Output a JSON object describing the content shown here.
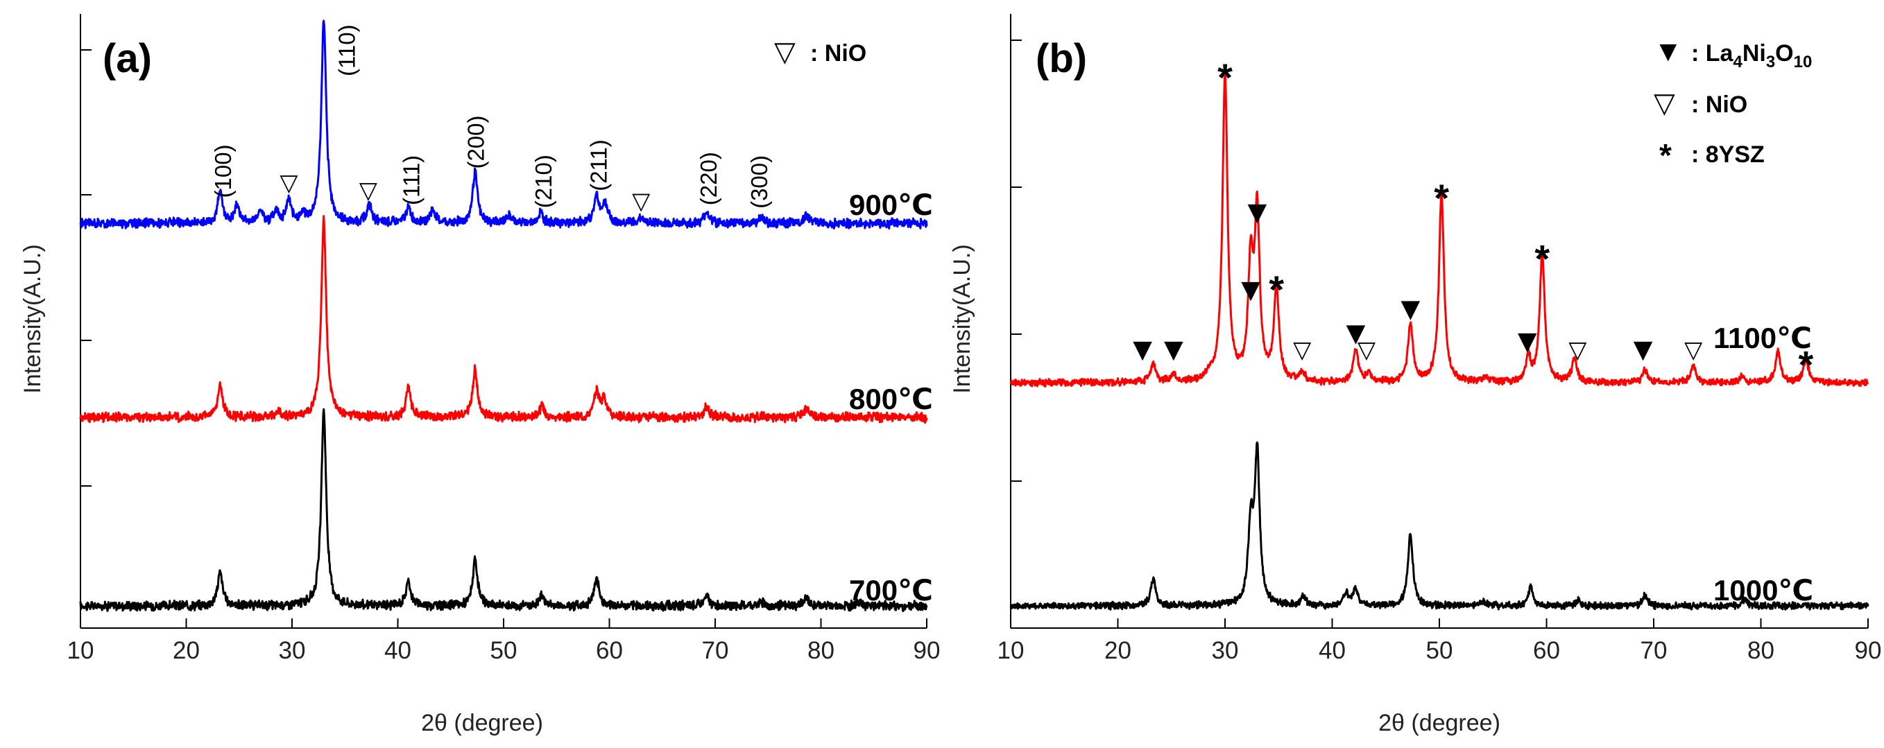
{
  "chart_data": [
    {
      "id": "a",
      "type": "line",
      "panel_label": "(a)",
      "xlabel": "2θ (degree)",
      "ylabel": "Intensity(A.U.)",
      "xlim": [
        10,
        90
      ],
      "xticks": [
        10,
        20,
        30,
        40,
        50,
        60,
        70,
        80,
        90
      ],
      "legend": [
        {
          "marker": "open-triangle",
          "marker_glyph": "▽",
          "label": ": NiO"
        }
      ],
      "series": [
        {
          "name": "700℃",
          "color": "#000000",
          "offset": 0,
          "baseline": 1.0,
          "peaks": [
            [
              23.2,
              2.5
            ],
            [
              33.0,
              14.5
            ],
            [
              41.0,
              1.8
            ],
            [
              47.3,
              3.3
            ],
            [
              53.6,
              0.8
            ],
            [
              58.8,
              2.0
            ],
            [
              69.2,
              0.7
            ],
            [
              74.3,
              0.3
            ],
            [
              78.6,
              0.6
            ],
            [
              83.5,
              0.3
            ]
          ]
        },
        {
          "name": "800℃",
          "color": "#ff0000",
          "offset": 1,
          "baseline": 1.0,
          "peaks": [
            [
              23.2,
              2.4
            ],
            [
              28.7,
              0.4
            ],
            [
              33.0,
              14.5
            ],
            [
              41.0,
              2.2
            ],
            [
              47.3,
              3.5
            ],
            [
              53.6,
              0.8
            ],
            [
              58.8,
              1.9
            ],
            [
              59.5,
              1.4
            ],
            [
              69.2,
              0.8
            ],
            [
              78.6,
              0.7
            ]
          ]
        },
        {
          "name": "900℃",
          "color": "#0000ff",
          "offset": 2,
          "baseline": 1.0,
          "peaks": [
            [
              23.2,
              2.3
            ],
            [
              24.8,
              1.3
            ],
            [
              27.0,
              1.0
            ],
            [
              28.5,
              0.9
            ],
            [
              29.7,
              1.6
            ],
            [
              31.0,
              0.6
            ],
            [
              33.0,
              15.0
            ],
            [
              37.3,
              1.3
            ],
            [
              41.0,
              1.2
            ],
            [
              43.3,
              1.0
            ],
            [
              47.3,
              3.7
            ],
            [
              50.5,
              0.6
            ],
            [
              53.5,
              0.8
            ],
            [
              58.8,
              2.1
            ],
            [
              59.6,
              1.4
            ],
            [
              63.0,
              0.4
            ],
            [
              69.2,
              0.9
            ],
            [
              74.3,
              0.4
            ],
            [
              78.6,
              0.6
            ]
          ]
        }
      ],
      "temperature_labels": [
        "700℃",
        "800℃",
        "900℃"
      ],
      "annotations": [
        {
          "text": "(100)",
          "x": 23.5,
          "kind": "miller"
        },
        {
          "text": "(110)",
          "x": 35.2,
          "kind": "miller"
        },
        {
          "text": "(111)",
          "x": 41.3,
          "kind": "miller"
        },
        {
          "text": "(200)",
          "x": 47.4,
          "kind": "miller"
        },
        {
          "text": "(210)",
          "x": 53.8,
          "kind": "miller"
        },
        {
          "text": "(211)",
          "x": 59.0,
          "kind": "miller"
        },
        {
          "text": "(220)",
          "x": 69.4,
          "kind": "miller"
        },
        {
          "text": "(300)",
          "x": 74.2,
          "kind": "miller"
        },
        {
          "text": "▽",
          "x": 29.7,
          "kind": "nio"
        },
        {
          "text": "▽",
          "x": 37.2,
          "kind": "nio"
        },
        {
          "text": "▽",
          "x": 63.0,
          "kind": "nio"
        }
      ]
    },
    {
      "id": "b",
      "type": "line",
      "panel_label": "(b)",
      "xlabel": "2θ (degree)",
      "ylabel": "Intensity(A.U.)",
      "xlim": [
        10,
        90
      ],
      "xticks": [
        10,
        20,
        30,
        40,
        50,
        60,
        70,
        80,
        90
      ],
      "legend": [
        {
          "marker": "filled-triangle",
          "marker_glyph": "▼",
          "label": ": La4Ni3O10",
          "label_parts": [
            ": La",
            "4",
            "Ni",
            "3",
            "O",
            "10"
          ]
        },
        {
          "marker": "open-triangle",
          "marker_glyph": "▽",
          "label": ": NiO"
        },
        {
          "marker": "asterisk",
          "marker_glyph": "*",
          "label": ": 8YSZ"
        }
      ],
      "series": [
        {
          "name": "1000℃",
          "color": "#000000",
          "offset": 0,
          "baseline": 1.0,
          "peaks": [
            [
              23.3,
              2.6
            ],
            [
              32.4,
              7.5
            ],
            [
              33.0,
              14.5
            ],
            [
              37.3,
              0.9
            ],
            [
              41.3,
              1.2
            ],
            [
              42.2,
              1.6
            ],
            [
              47.3,
              7.0
            ],
            [
              54.0,
              0.5
            ],
            [
              58.5,
              1.8
            ],
            [
              63.0,
              0.5
            ],
            [
              69.2,
              1.0
            ],
            [
              78.5,
              0.7
            ]
          ]
        },
        {
          "name": "1100℃",
          "color": "#ff0000",
          "offset": 1,
          "baseline": 1.0,
          "peaks": [
            [
              23.3,
              1.8
            ],
            [
              25.2,
              0.7
            ],
            [
              28.5,
              0.6
            ],
            [
              30.0,
              30.0
            ],
            [
              32.4,
              11.0
            ],
            [
              33.0,
              16.0
            ],
            [
              34.8,
              9.0
            ],
            [
              37.2,
              0.9
            ],
            [
              42.2,
              3.2
            ],
            [
              43.4,
              0.8
            ],
            [
              47.3,
              5.5
            ],
            [
              50.2,
              18.5
            ],
            [
              54.3,
              0.6
            ],
            [
              58.3,
              2.3
            ],
            [
              59.6,
              12.5
            ],
            [
              62.6,
              2.3
            ],
            [
              69.2,
              1.2
            ],
            [
              73.7,
              1.6
            ],
            [
              78.2,
              0.6
            ],
            [
              81.6,
              3.0
            ],
            [
              84.2,
              2.3
            ]
          ]
        }
      ],
      "temperature_labels": [
        "1000℃",
        "1100℃"
      ],
      "annotations": [
        {
          "text": "*",
          "x": 30.0,
          "kind": "star"
        },
        {
          "text": "*",
          "x": 34.8,
          "kind": "star"
        },
        {
          "text": "*",
          "x": 50.2,
          "kind": "star"
        },
        {
          "text": "*",
          "x": 59.6,
          "kind": "star"
        },
        {
          "text": "*",
          "x": 84.2,
          "kind": "star"
        },
        {
          "text": "▼",
          "x": 22.3,
          "kind": "la4"
        },
        {
          "text": "▼",
          "x": 25.2,
          "kind": "la4"
        },
        {
          "text": "▼",
          "x": 32.4,
          "kind": "la4"
        },
        {
          "text": "▼",
          "x": 33.0,
          "kind": "la4"
        },
        {
          "text": "▼",
          "x": 42.2,
          "kind": "la4"
        },
        {
          "text": "▼",
          "x": 47.3,
          "kind": "la4"
        },
        {
          "text": "▼",
          "x": 58.2,
          "kind": "la4"
        },
        {
          "text": "▼",
          "x": 69.0,
          "kind": "la4"
        },
        {
          "text": "▽",
          "x": 37.2,
          "kind": "nio"
        },
        {
          "text": "▽",
          "x": 43.2,
          "kind": "nio"
        },
        {
          "text": "▽",
          "x": 62.9,
          "kind": "nio"
        },
        {
          "text": "▽",
          "x": 73.7,
          "kind": "nio"
        }
      ]
    }
  ]
}
